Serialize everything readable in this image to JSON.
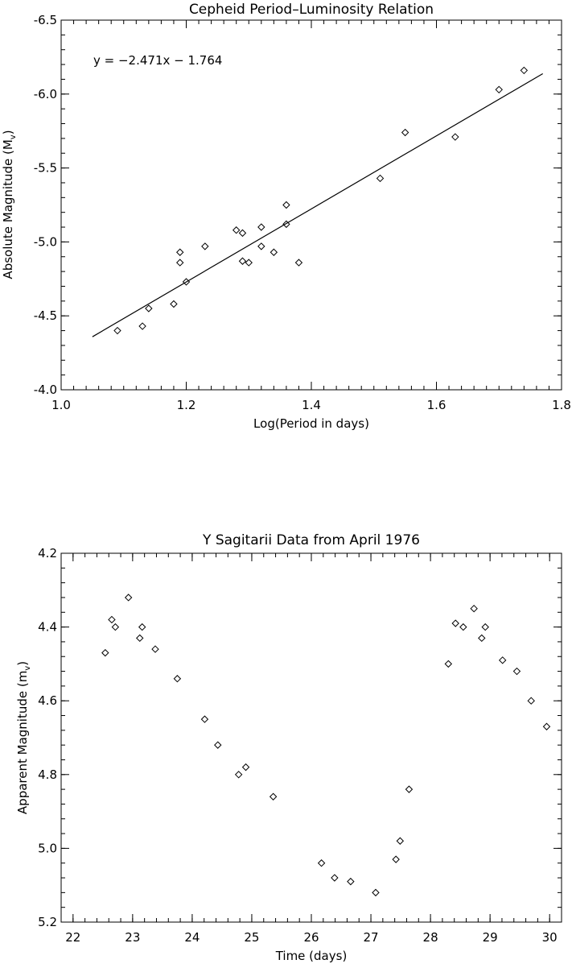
{
  "chart_data": [
    {
      "type": "scatter",
      "title": "Cepheid Period–Luminosity Relation",
      "xlabel": "Log(Period in days)",
      "ylabel": "Absolute Magnitude (M",
      "ylabel_sub": "v",
      "ylabel_end": ")",
      "xlim": [
        1.0,
        1.8
      ],
      "ylim": [
        -4.0,
        -6.5
      ],
      "y_reversed": true,
      "xticks": [
        "1.0",
        "1.2",
        "1.4",
        "1.6",
        "1.8"
      ],
      "xtick_values": [
        1.0,
        1.2,
        1.4,
        1.6,
        1.8
      ],
      "yticks": [
        "-4.0",
        "-4.5",
        "-5.0",
        "-5.5",
        "-6.0",
        "-6.5"
      ],
      "ytick_values": [
        -4.0,
        -4.5,
        -5.0,
        -5.5,
        -6.0,
        -6.5
      ],
      "x_minor_step": 0.02,
      "y_minor_step": 0.1,
      "marker": "diamond",
      "grid": false,
      "annotation": "y = −2.471x − 1.764",
      "fit_line": {
        "slope": -2.471,
        "intercept": -1.764,
        "x_range": [
          1.05,
          1.77
        ]
      },
      "x": [
        1.09,
        1.13,
        1.14,
        1.18,
        1.19,
        1.19,
        1.2,
        1.23,
        1.28,
        1.29,
        1.29,
        1.3,
        1.32,
        1.32,
        1.34,
        1.36,
        1.36,
        1.38,
        1.51,
        1.55,
        1.63,
        1.7,
        1.74
      ],
      "y": [
        -4.4,
        -4.43,
        -4.55,
        -4.58,
        -4.86,
        -4.93,
        -4.73,
        -4.97,
        -5.08,
        -5.06,
        -4.87,
        -4.86,
        -5.1,
        -4.97,
        -4.93,
        -5.12,
        -5.25,
        -4.86,
        -5.43,
        -5.74,
        -5.71,
        -6.03,
        -6.16
      ]
    },
    {
      "type": "scatter",
      "title": "Y Sagitarii Data from April 1976",
      "xlabel": "Time (days)",
      "ylabel": "Apparent Magnitude (m",
      "ylabel_sub": "v",
      "ylabel_end": ")",
      "xlim": [
        21.8,
        30.2
      ],
      "ylim": [
        5.2,
        4.2
      ],
      "y_reversed": true,
      "xticks": [
        "22",
        "23",
        "24",
        "25",
        "26",
        "27",
        "28",
        "29",
        "30"
      ],
      "xtick_values": [
        22,
        23,
        24,
        25,
        26,
        27,
        28,
        29,
        30
      ],
      "yticks": [
        "4.2",
        "4.4",
        "4.6",
        "4.8",
        "5.0",
        "5.2"
      ],
      "ytick_values": [
        4.2,
        4.4,
        4.6,
        4.8,
        5.0,
        5.2
      ],
      "x_minor_step": 0.2,
      "y_minor_step": 0.04,
      "marker": "diamond",
      "grid": false,
      "x": [
        22.54,
        22.65,
        22.71,
        22.93,
        23.12,
        23.16,
        23.38,
        23.75,
        24.21,
        24.43,
        24.78,
        24.9,
        25.36,
        26.17,
        26.39,
        26.66,
        27.08,
        27.42,
        27.49,
        27.64,
        28.3,
        28.42,
        28.55,
        28.73,
        28.86,
        28.92,
        29.21,
        29.45,
        29.69,
        29.95
      ],
      "y": [
        4.47,
        4.38,
        4.4,
        4.32,
        4.43,
        4.4,
        4.46,
        4.54,
        4.65,
        4.72,
        4.8,
        4.78,
        4.86,
        5.04,
        5.08,
        5.09,
        5.12,
        5.03,
        4.98,
        4.84,
        4.5,
        4.39,
        4.4,
        4.35,
        4.43,
        4.4,
        4.49,
        4.52,
        4.6,
        4.67
      ]
    }
  ]
}
